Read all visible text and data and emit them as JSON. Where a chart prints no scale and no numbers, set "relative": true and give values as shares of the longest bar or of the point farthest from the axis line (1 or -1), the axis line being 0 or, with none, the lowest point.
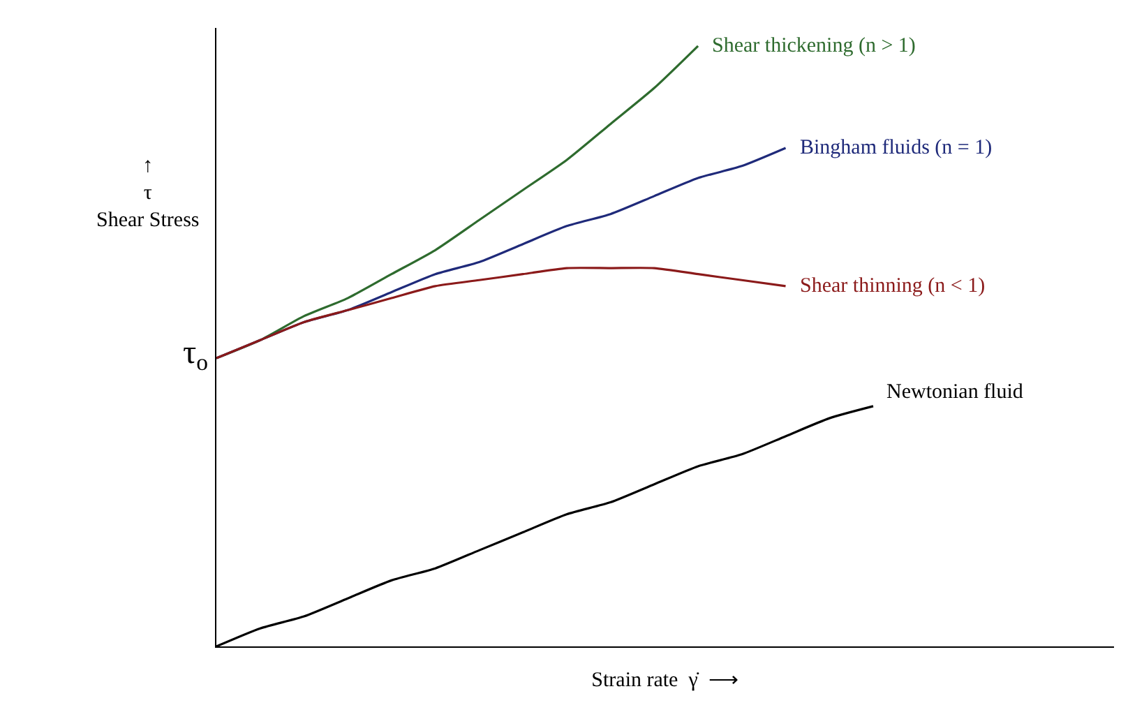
{
  "chart_data": {
    "type": "line",
    "relative": true,
    "legend": false,
    "marker": "none",
    "line_style": "solid",
    "xlabel": "Strain rate  γ̇  ⟶",
    "ylabel": "↑\nτ\nShear Stress",
    "categories": [
      null,
      null,
      null,
      null,
      null,
      null,
      null,
      null,
      null,
      null,
      null,
      null,
      null,
      null,
      null,
      null
    ],
    "series": [
      {
        "name": "Shear thickening (n > 1)",
        "color": "#2e6b2e",
        "values": [
          0.48,
          0.51,
          0.55,
          0.58,
          0.62,
          0.66,
          0.71,
          0.76,
          0.81,
          0.87,
          0.93,
          1.0,
          null,
          null,
          null,
          null
        ]
      },
      {
        "name": "Bingham fluids (n = 1)",
        "color": "#1f2a7a",
        "values": [
          0.48,
          0.51,
          0.54,
          0.56,
          0.59,
          0.62,
          0.64,
          0.67,
          0.7,
          0.72,
          0.75,
          0.78,
          0.8,
          0.83,
          null,
          null
        ]
      },
      {
        "name": "Shear thinning (n < 1)",
        "color": "#8b1a1a",
        "values": [
          0.48,
          0.51,
          0.54,
          0.56,
          0.58,
          0.6,
          0.61,
          0.62,
          0.63,
          0.63,
          0.63,
          0.62,
          0.61,
          0.6,
          null,
          null
        ]
      },
      {
        "name": "Newtonian fluid",
        "color": "#000000",
        "values": [
          0.0,
          0.03,
          0.05,
          0.08,
          0.11,
          0.13,
          0.16,
          0.19,
          0.22,
          0.24,
          0.27,
          0.3,
          0.32,
          0.35,
          0.38,
          0.4
        ]
      }
    ],
    "annotations": [
      "τ$_{o}$"
    ]
  }
}
